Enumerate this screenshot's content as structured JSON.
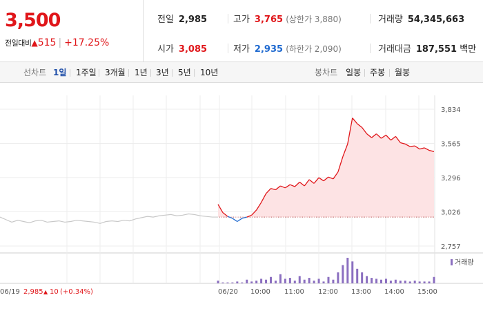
{
  "quote": {
    "price": "3,500",
    "change_label": "전일대비",
    "change_arrow": "▲",
    "change_value": "515",
    "change_percent": "+17.25%",
    "prev_close_label": "전일",
    "prev_close": "2,985",
    "high_label": "고가",
    "high": "3,765",
    "upper_limit": "(상한가 3,880)",
    "volume_label": "거래량",
    "volume": "54,345,663",
    "open_label": "시가",
    "open": "3,085",
    "low_label": "저가",
    "low": "2,935",
    "lower_limit": "(하한가 2,090)",
    "amount_label": "거래대금",
    "amount": "187,551",
    "amount_unit": "백만"
  },
  "tabs": {
    "line_label": "선차트",
    "line_items": [
      "1일",
      "1주일",
      "3개월",
      "1년",
      "3년",
      "5년",
      "10년"
    ],
    "active_line": "1일",
    "candle_label": "봉차트",
    "candle_items": [
      "일봉",
      "주봉",
      "월봉"
    ]
  },
  "colors": {
    "up": "#e0161a",
    "down": "#1f6ad0",
    "prev_day_line": "#c8c8c8",
    "area_fill": "#fde3e4",
    "volume_bar": "#8b6fc0"
  },
  "chart_data": {
    "type": "line",
    "ylim": [
      2757,
      3834
    ],
    "y_ticks": [
      "3,834",
      "3,565",
      "3,296",
      "3,026",
      "2,757"
    ],
    "baseline": 2985,
    "x_labels": [
      "06/19",
      "06/20",
      "10:00",
      "11:00",
      "12:00",
      "13:00",
      "14:00",
      "15:00"
    ],
    "previous_day_note": {
      "date": "06/19",
      "close": "2,985",
      "arrow": "▲",
      "change": "10",
      "percent": "(+0.34%)"
    },
    "volume_label": "거래량",
    "series": [
      {
        "segment": "prev_day",
        "values": [
          2985,
          2965,
          2945,
          2960,
          2950,
          2940,
          2955,
          2960,
          2945,
          2950,
          2955,
          2945,
          2950,
          2960,
          2955,
          2950,
          2945,
          2935,
          2950,
          2955,
          2950,
          2960,
          2955,
          2970,
          2980,
          2990,
          2985,
          2995,
          3000,
          3005,
          2995,
          3000,
          3010,
          3005,
          2995,
          2990,
          2985,
          2985
        ]
      },
      {
        "segment": "today",
        "values": [
          3085,
          3020,
          2990,
          2975,
          2950,
          2975,
          2985,
          3000,
          3040,
          3100,
          3170,
          3210,
          3200,
          3230,
          3215,
          3240,
          3225,
          3260,
          3230,
          3280,
          3250,
          3295,
          3270,
          3300,
          3285,
          3340,
          3460,
          3560,
          3765,
          3720,
          3690,
          3640,
          3610,
          3640,
          3605,
          3630,
          3590,
          3620,
          3570,
          3560,
          3540,
          3545,
          3520,
          3530,
          3510,
          3500
        ]
      }
    ],
    "volume": [
      3,
      1,
      1,
      1,
      2,
      1,
      4,
      2,
      3,
      5,
      4,
      7,
      3,
      10,
      5,
      6,
      3,
      8,
      4,
      6,
      3,
      5,
      2,
      7,
      4,
      12,
      20,
      28,
      24,
      16,
      12,
      8,
      6,
      5,
      4,
      5,
      3,
      4,
      3,
      3,
      2,
      3,
      2,
      2,
      2,
      7
    ]
  }
}
